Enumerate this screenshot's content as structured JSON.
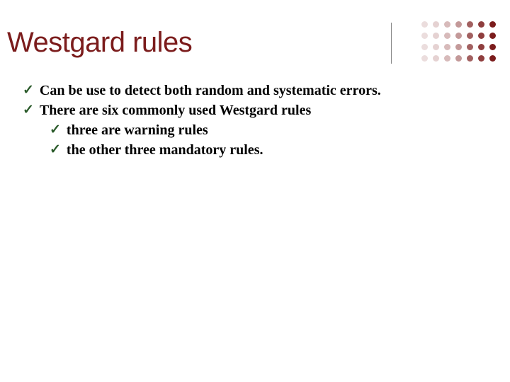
{
  "title": {
    "text": "Westgard rules",
    "color": "#7b1c1c",
    "fontsize": 40
  },
  "decoration": {
    "line_color": "#888888",
    "dot_grid": {
      "rows": 4,
      "cols": 7,
      "dot_size": 9,
      "gap": 3,
      "base_color": "#7b1c1c",
      "opacities": [
        [
          0.15,
          0.2,
          0.3,
          0.45,
          0.7,
          0.85,
          1.0
        ],
        [
          0.15,
          0.2,
          0.3,
          0.45,
          0.7,
          0.85,
          1.0
        ],
        [
          0.15,
          0.2,
          0.3,
          0.45,
          0.7,
          0.85,
          1.0
        ],
        [
          0.15,
          0.2,
          0.3,
          0.45,
          0.7,
          0.85,
          1.0
        ]
      ]
    }
  },
  "bullets": {
    "check_color": "#2a5a2a",
    "text_color": "#000000",
    "fontsize": 20,
    "items": [
      {
        "text": "Can be use to detect both random and systematic errors.",
        "children": []
      },
      {
        "text": "There are six commonly used Westgard rules",
        "children": [
          {
            "text": "three are warning rules"
          },
          {
            "text": "the other three mandatory rules."
          }
        ]
      }
    ]
  },
  "background_color": "#ffffff"
}
